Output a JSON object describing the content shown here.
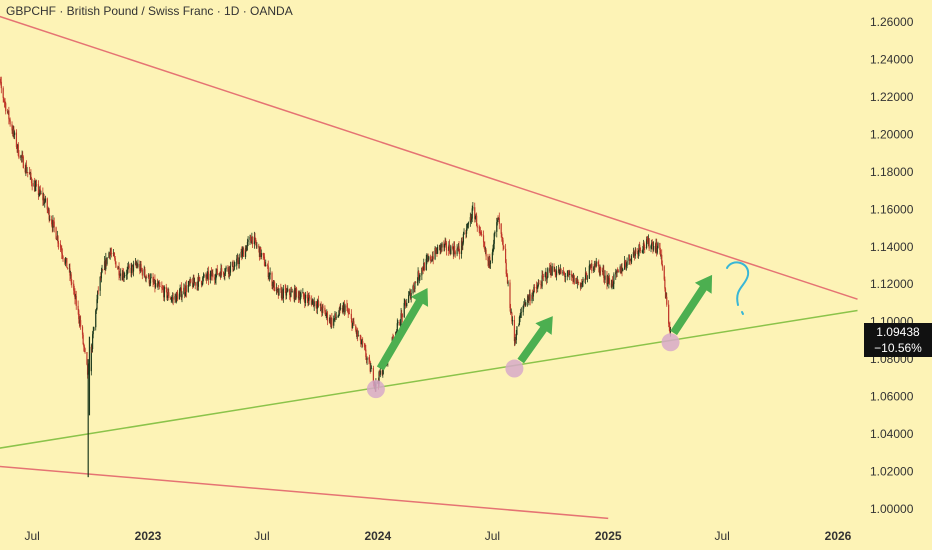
{
  "title": "GBPCHF · British Pound / Swiss Franc · 1D · OANDA",
  "price_tag": {
    "price": "1.09438",
    "change": "−10.56%"
  },
  "colors": {
    "background": "#fdf3b6",
    "up_candle": "#1e3a1e",
    "down_candle": "#c0392b",
    "resistance_line": "#e57373",
    "support_line": "#8bc34a",
    "arrow": "#4caf50",
    "circle": "#d7a9c9",
    "question": "#38b6d6"
  },
  "icons": [
    "up-arrow-icon",
    "question-mark-icon",
    "low-marker-circle-icon"
  ],
  "chart_data": {
    "type": "candlestick",
    "symbol": "GBPCHF",
    "interval": "1D",
    "ylim": [
      0.995,
      1.265
    ],
    "y_ticks": [
      "1.26000",
      "1.24000",
      "1.22000",
      "1.20000",
      "1.18000",
      "1.16000",
      "1.14000",
      "1.12000",
      "1.10000",
      "1.08000",
      "1.06000",
      "1.04000",
      "1.02000",
      "1.00000"
    ],
    "x_ticks": [
      {
        "label": "Jul",
        "date": "2022-07-01",
        "bold": false
      },
      {
        "label": "2023",
        "date": "2023-01-01",
        "bold": true
      },
      {
        "label": "Jul",
        "date": "2023-07-01",
        "bold": false
      },
      {
        "label": "2024",
        "date": "2024-01-01",
        "bold": true
      },
      {
        "label": "Jul",
        "date": "2024-07-01",
        "bold": false
      },
      {
        "label": "2025",
        "date": "2025-01-01",
        "bold": true
      },
      {
        "label": "Jul",
        "date": "2025-07-01",
        "bold": false
      },
      {
        "label": "2026",
        "date": "2026-01-01",
        "bold": true
      }
    ],
    "xlim": [
      "2022-05-01",
      "2026-02-01"
    ],
    "price_path": [
      [
        "2022-05-01",
        1.24
      ],
      [
        "2022-05-20",
        1.215
      ],
      [
        "2022-06-10",
        1.19
      ],
      [
        "2022-07-05",
        1.172
      ],
      [
        "2022-07-20",
        1.165
      ],
      [
        "2022-08-10",
        1.145
      ],
      [
        "2022-08-30",
        1.125
      ],
      [
        "2022-09-15",
        1.1
      ],
      [
        "2022-09-28",
        1.07
      ],
      [
        "2022-10-15",
        1.12
      ],
      [
        "2022-11-01",
        1.138
      ],
      [
        "2022-11-20",
        1.125
      ],
      [
        "2022-12-15",
        1.13
      ],
      [
        "2023-01-10",
        1.12
      ],
      [
        "2023-02-10",
        1.112
      ],
      [
        "2023-03-10",
        1.12
      ],
      [
        "2023-04-15",
        1.125
      ],
      [
        "2023-05-20",
        1.13
      ],
      [
        "2023-06-15",
        1.145
      ],
      [
        "2023-07-01",
        1.135
      ],
      [
        "2023-07-25",
        1.115
      ],
      [
        "2023-08-25",
        1.115
      ],
      [
        "2023-09-25",
        1.11
      ],
      [
        "2023-10-20",
        1.1
      ],
      [
        "2023-11-10",
        1.108
      ],
      [
        "2023-12-10",
        1.085
      ],
      [
        "2023-12-29",
        1.066
      ],
      [
        "2024-01-20",
        1.085
      ],
      [
        "2024-02-15",
        1.11
      ],
      [
        "2024-03-10",
        1.128
      ],
      [
        "2024-04-10",
        1.14
      ],
      [
        "2024-05-10",
        1.138
      ],
      [
        "2024-06-01",
        1.16
      ],
      [
        "2024-06-10",
        1.148
      ],
      [
        "2024-06-25",
        1.13
      ],
      [
        "2024-07-10",
        1.155
      ],
      [
        "2024-07-20",
        1.135
      ],
      [
        "2024-08-05",
        1.09
      ],
      [
        "2024-08-20",
        1.11
      ],
      [
        "2024-09-10",
        1.118
      ],
      [
        "2024-10-01",
        1.128
      ],
      [
        "2024-10-25",
        1.125
      ],
      [
        "2024-11-20",
        1.12
      ],
      [
        "2024-12-10",
        1.132
      ],
      [
        "2025-01-05",
        1.12
      ],
      [
        "2025-01-25",
        1.13
      ],
      [
        "2025-02-20",
        1.14
      ],
      [
        "2025-03-10",
        1.142
      ],
      [
        "2025-03-25",
        1.138
      ],
      [
        "2025-04-05",
        1.105
      ],
      [
        "2025-04-10",
        1.094
      ]
    ],
    "trend_lines": [
      {
        "name": "upper-resistance",
        "points": [
          [
            "2022-05-01",
            1.264
          ],
          [
            "2026-02-01",
            1.112
          ]
        ]
      },
      {
        "name": "lower-support",
        "points": [
          [
            "2022-05-01",
            1.032
          ],
          [
            "2026-02-01",
            1.106
          ]
        ]
      },
      {
        "name": "bottom-channel",
        "points": [
          [
            "2022-05-01",
            1.023
          ],
          [
            "2025-01-01",
            0.995
          ]
        ]
      }
    ],
    "spikes": [
      {
        "date": "2022-09-28",
        "low": 1.017,
        "high": 1.08
      },
      {
        "date": "2022-09-30",
        "low": 1.05,
        "high": 1.092
      }
    ],
    "markers": [
      {
        "type": "circle",
        "date": "2023-12-29",
        "value": 1.064
      },
      {
        "type": "circle",
        "date": "2024-08-05",
        "value": 1.075
      },
      {
        "type": "circle",
        "date": "2025-04-10",
        "value": 1.089
      }
    ],
    "arrows": [
      {
        "from": [
          "2024-01-05",
          1.075
        ],
        "to": [
          "2024-03-20",
          1.118
        ]
      },
      {
        "from": [
          "2024-08-15",
          1.079
        ],
        "to": [
          "2024-10-05",
          1.103
        ]
      },
      {
        "from": [
          "2025-04-15",
          1.094
        ],
        "to": [
          "2025-06-15",
          1.125
        ]
      }
    ],
    "last_price": 1.09438,
    "change_percent": -10.56
  }
}
